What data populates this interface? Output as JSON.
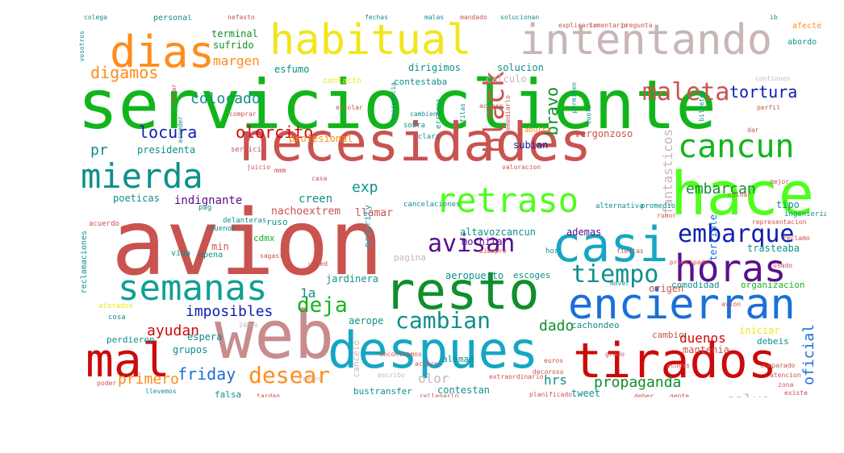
{
  "words": [
    {
      "text": "avion",
      "color": "#c9534f",
      "bucket": "xxl"
    },
    {
      "text": "servicio",
      "color": "#11b51b",
      "bucket": "xl"
    },
    {
      "text": "cliente",
      "color": "#11b51b",
      "bucket": "xl"
    },
    {
      "text": "web",
      "color": "#c98c8c",
      "bucket": "xl"
    },
    {
      "text": "hace",
      "color": "#4dff1a",
      "bucket": "xl"
    },
    {
      "text": "necesidades",
      "color": "#c9534f",
      "bucket": "l"
    },
    {
      "text": "despues",
      "color": "#15a6c4",
      "bucket": "l"
    },
    {
      "text": "resto",
      "color": "#0f8f2a",
      "bucket": "l"
    },
    {
      "text": "casi",
      "color": "#15a6c4",
      "bucket": "l"
    },
    {
      "text": "intentando",
      "color": "#c9b5b5",
      "bucket": "l"
    },
    {
      "text": "habitual",
      "color": "#f0e61a",
      "bucket": "l"
    },
    {
      "text": "dias",
      "color": "#ff8c1a",
      "bucket": "l"
    },
    {
      "text": "tirados",
      "color": "#cc0a0a",
      "bucket": "l"
    },
    {
      "text": "mal",
      "color": "#cc0a0a",
      "bucket": "l"
    },
    {
      "text": "encierran",
      "color": "#1a6fd9",
      "bucket": "l"
    },
    {
      "text": "semanas",
      "color": "#11a095",
      "bucket": "l"
    },
    {
      "text": "horas",
      "color": "#5a0f8c",
      "bucket": "l"
    },
    {
      "text": "mierda",
      "color": "#0f8f8a",
      "bucket": "m"
    },
    {
      "text": "retraso",
      "color": "#4dff1a",
      "bucket": "m"
    },
    {
      "text": "cancun",
      "color": "#11b51b",
      "bucket": "m"
    },
    {
      "text": "embarque",
      "color": "#0f1eb0",
      "bucket": "m"
    },
    {
      "text": "avisan",
      "color": "#5a0f8c",
      "bucket": "m"
    },
    {
      "text": "maleta",
      "color": "#c9534f",
      "bucket": "m"
    },
    {
      "text": "black",
      "color": "#c9534f",
      "bucket": "m"
    },
    {
      "text": "tiempo",
      "color": "#0f8f8a",
      "bucket": "m"
    },
    {
      "text": "cambian",
      "color": "#0f8f8a",
      "bucket": "m"
    },
    {
      "text": "desear",
      "color": "#ff8c1a",
      "bucket": "m"
    },
    {
      "text": "deja",
      "color": "#11b51b",
      "bucket": "m"
    },
    {
      "text": "friday",
      "color": "#1a6fd9",
      "bucket": "s"
    },
    {
      "text": "tortura",
      "color": "#0f1eb0",
      "bucket": "s"
    },
    {
      "text": "bravo",
      "color": "#0f8f2a",
      "bucket": "s"
    },
    {
      "text": "olorcito",
      "color": "#cc0a0a",
      "bucket": "s"
    },
    {
      "text": "locura",
      "color": "#0f1eb0",
      "bucket": "s"
    },
    {
      "text": "digamos",
      "color": "#ff8c1a",
      "bucket": "s"
    },
    {
      "text": "margen",
      "color": "#ff8c1a",
      "bucket": "s"
    },
    {
      "text": "colocado",
      "color": "#0f8f8a",
      "bucket": "s"
    },
    {
      "text": "embarcan",
      "color": "#0f8f2a",
      "bucket": "s"
    },
    {
      "text": "imposibles",
      "color": "#0f1eb0",
      "bucket": "s"
    },
    {
      "text": "ayudan",
      "color": "#cc0a0a",
      "bucket": "s"
    },
    {
      "text": "propaganda",
      "color": "#0f8f2a",
      "bucket": "s"
    },
    {
      "text": "primero",
      "color": "#ff8c1a",
      "bucket": "s"
    },
    {
      "text": "oficial",
      "color": "#1a6fd9",
      "bucket": "s"
    },
    {
      "text": "salvo",
      "color": "#c9b5b5",
      "bucket": "s"
    },
    {
      "text": "dado",
      "color": "#0f8f2a",
      "bucket": "s"
    },
    {
      "text": "pr",
      "color": "#0f8f8a",
      "bucket": "s"
    },
    {
      "text": "exp",
      "color": "#0f8f8a",
      "bucket": "s"
    },
    {
      "text": "fantasticos",
      "color": "#c9b5b5",
      "bucket": "s"
    },
    {
      "text": "1a",
      "color": "#0f8f8a",
      "bucket": "s"
    },
    {
      "text": "duenos",
      "color": "#cc0a0a",
      "bucket": "s"
    },
    {
      "text": "olor",
      "color": "#c9b5b5",
      "bucket": "s"
    },
    {
      "text": "hrs",
      "color": "#0f8f8a",
      "bucket": "s"
    },
    {
      "text": "indignante",
      "color": "#5a0f8c",
      "bucket": "xs"
    },
    {
      "text": "creen",
      "color": "#0f8f8a",
      "bucket": "xs"
    },
    {
      "text": "nachoextrem",
      "color": "#c9534f",
      "bucket": "xs"
    },
    {
      "text": "llamar",
      "color": "#c9534f",
      "bucket": "xs"
    },
    {
      "text": "altavozcancun",
      "color": "#0f8f8a",
      "bucket": "xs"
    },
    {
      "text": "ademas",
      "color": "#5a0f8c",
      "bucket": "xs"
    },
    {
      "text": "terminal",
      "color": "#0f8f2a",
      "bucket": "xs"
    },
    {
      "text": "sufrido",
      "color": "#0f8f2a",
      "bucket": "xs"
    },
    {
      "text": "esfumo",
      "color": "#0f8f8a",
      "bucket": "xs"
    },
    {
      "text": "dirigimos",
      "color": "#0f8f8a",
      "bucket": "xs"
    },
    {
      "text": "contestaba",
      "color": "#0f8f8a",
      "bucket": "xs"
    },
    {
      "text": "solucion",
      "color": "#0f8f8a",
      "bucket": "xs"
    },
    {
      "text": "calculo",
      "color": "#c9b5b5",
      "bucket": "xs"
    },
    {
      "text": "profesional",
      "color": "#ff8c1a",
      "bucket": "xs"
    },
    {
      "text": "presidenta",
      "color": "#0f8f8a",
      "bucket": "xs"
    },
    {
      "text": "poeticas",
      "color": "#0f8f8a",
      "bucket": "xs"
    },
    {
      "text": "subian",
      "color": "#0f1eb0",
      "bucket": "xs"
    },
    {
      "text": "vergonzoso",
      "color": "#c9534f",
      "bucket": "xs"
    },
    {
      "text": "tipo",
      "color": "#0f8f8a",
      "bucket": "xs"
    },
    {
      "text": "terrible",
      "color": "#1a6fd9",
      "bucket": "xs"
    },
    {
      "text": "mochila",
      "color": "#5a0f8c",
      "bucket": "xs"
    },
    {
      "text": "aeropuerto",
      "color": "#0f8f8a",
      "bucket": "xs"
    },
    {
      "text": "escoges",
      "color": "#0f8f8a",
      "bucket": "xs"
    },
    {
      "text": "trasteaba",
      "color": "#0f8f8a",
      "bucket": "xs"
    },
    {
      "text": "origen",
      "color": "#c9534f",
      "bucket": "xs"
    },
    {
      "text": "comodidad",
      "color": "#0f8f8a",
      "bucket": "xs"
    },
    {
      "text": "organizacion",
      "color": "#11b51b",
      "bucket": "xs"
    },
    {
      "text": "jardinera",
      "color": "#0f8f8a",
      "bucket": "xs"
    },
    {
      "text": "aerope",
      "color": "#0f8f8a",
      "bucket": "xs"
    },
    {
      "text": "cachondeo",
      "color": "#0f8f8a",
      "bucket": "xs"
    },
    {
      "text": "cambio",
      "color": "#c9534f",
      "bucket": "xs"
    },
    {
      "text": "mantenia",
      "color": "#c9534f",
      "bucket": "xs"
    },
    {
      "text": "iniciar",
      "color": "#f0e61a",
      "bucket": "xs"
    },
    {
      "text": "debeis",
      "color": "#0f8f8a",
      "bucket": "xs"
    },
    {
      "text": "espera",
      "color": "#0f8f8a",
      "bucket": "xs"
    },
    {
      "text": "grupos",
      "color": "#0f8f8a",
      "bucket": "xs"
    },
    {
      "text": "perdieron",
      "color": "#0f8f8a",
      "bucket": "xs"
    },
    {
      "text": "cancelo",
      "color": "#c9b5b5",
      "bucket": "xs"
    },
    {
      "text": "tweet",
      "color": "#0f8f8a",
      "bucket": "xs"
    },
    {
      "text": "contestan",
      "color": "#0f8f8a",
      "bucket": "xs"
    },
    {
      "text": "bustransfer",
      "color": "#0f8f8a",
      "bucket": "xs"
    },
    {
      "text": "falsa",
      "color": "#0f8f8a",
      "bucket": "xs"
    },
    {
      "text": "min",
      "color": "#c9534f",
      "bucket": "xs"
    },
    {
      "text": "cdmx",
      "color": "#11b51b",
      "bucket": "xs"
    },
    {
      "text": "priority",
      "color": "#15a6c4",
      "bucket": "xs"
    },
    {
      "text": "pagina",
      "color": "#c9b5b5",
      "bucket": "xs"
    },
    {
      "text": "ruso",
      "color": "#0f8f8a",
      "bucket": "xs"
    },
    {
      "text": "aleman",
      "color": "#0f8f8a",
      "bucket": "xs"
    },
    {
      "text": "reclamaciones",
      "color": "#0f8f8a",
      "bucket": "xxs"
    },
    {
      "text": "acuerdo",
      "color": "#c9534f",
      "bucket": "xxs"
    },
    {
      "text": "pag",
      "color": "#0f8f8a",
      "bucket": "xxs"
    },
    {
      "text": "buenos",
      "color": "#0f8f8a",
      "bucket": "xxs"
    },
    {
      "text": "vida",
      "color": "#0f8f8a",
      "bucket": "xxs"
    },
    {
      "text": "apena",
      "color": "#0f8f8a",
      "bucket": "xxs"
    },
    {
      "text": "cosa",
      "color": "#0f8f8a",
      "bucket": "xxs"
    },
    {
      "text": "atorados",
      "color": "#f0e61a",
      "bucket": "xxs"
    },
    {
      "text": "personal",
      "color": "#0f8f8a",
      "bucket": "xxs"
    },
    {
      "text": "delanteras",
      "color": "#0f8f8a",
      "bucket": "xxs"
    },
    {
      "text": "contacto",
      "color": "#f0e61a",
      "bucket": "xxs"
    },
    {
      "text": "afecte",
      "color": "#ff8c1a",
      "bucket": "xxs"
    },
    {
      "text": "abordo",
      "color": "#0f8f8a",
      "bucket": "xxs"
    },
    {
      "text": "ingenieria",
      "color": "#0f8f8a",
      "bucket": "xxs"
    },
    {
      "text": "hor",
      "color": "#0f8f8a",
      "bucket": "xxs"
    },
    {
      "text": "cancelaciones",
      "color": "#0f8f8a",
      "bucket": "xxs"
    },
    {
      "text": "alternativa",
      "color": "#0f8f8a",
      "bucket": "xxs"
    },
    {
      "text": "promedio",
      "color": "#0f8f8a",
      "bucket": "xxs"
    },
    {
      "text": "sobra",
      "color": "#0f8f8a",
      "bucket": "xxs"
    },
    {
      "text": "errores",
      "color": "#0f8f8a",
      "bucket": "xxs"
    },
    {
      "text": "abulta",
      "color": "#ff8c1a",
      "bucket": "xxs"
    },
    {
      "text": "servicio",
      "color": "#c9534f",
      "bucket": "xxs"
    },
    {
      "text": "clara",
      "color": "#0f8f8a",
      "bucket": "xxs"
    },
    {
      "text": "escribo",
      "color": "#c9b5b5",
      "bucket": "xxs"
    },
    {
      "text": "decoroso",
      "color": "#c9534f",
      "bucket": "xxs"
    },
    {
      "text": "llevemos",
      "color": "#0f8f8a",
      "bucket": "xxs"
    },
    {
      "text": "tardan",
      "color": "#c9534f",
      "bucket": "xxs"
    },
    {
      "text": "representacion",
      "color": "#c9534f",
      "bucket": "xxs"
    },
    {
      "text": "reclamo",
      "color": "#c9534f",
      "bucket": "xxs"
    },
    {
      "text": "rumor",
      "color": "#c9534f",
      "bucket": "xxs"
    },
    {
      "text": "juicio",
      "color": "#c9534f",
      "bucket": "xxs"
    },
    {
      "text": "llevar",
      "color": "#c9534f",
      "bucket": "xxs"
    },
    {
      "text": "acceder",
      "color": "#0f8f8a",
      "bucket": "xxs"
    },
    {
      "text": "permiten",
      "color": "#0f8f8a",
      "bucket": "xxs"
    },
    {
      "text": "coofi",
      "color": "#0f8f8a",
      "bucket": "xxs"
    },
    {
      "text": "colega",
      "color": "#0f8f8a",
      "bucket": "xxs"
    },
    {
      "text": "nefasto",
      "color": "#c9534f",
      "bucket": "xxs"
    },
    {
      "text": "fechas",
      "color": "#0f8f8a",
      "bucket": "xxs"
    },
    {
      "text": "malas",
      "color": "#0f8f8a",
      "bucket": "xxs"
    },
    {
      "text": "mandado",
      "color": "#c9534f",
      "bucket": "xxs"
    },
    {
      "text": "solucionan",
      "color": "#0f8f8a",
      "bucket": "xxs"
    },
    {
      "text": "vosotros",
      "color": "#0f8f8a",
      "bucket": "xxs"
    },
    {
      "text": "billetes",
      "color": "#0f8f8a",
      "bucket": "xxs"
    },
    {
      "text": "acabar",
      "color": "#c9534f",
      "bucket": "xxs"
    },
    {
      "text": "cambien",
      "color": "#0f8f8a",
      "bucket": "xxs"
    },
    {
      "text": "emergencia",
      "color": "#0f8f8a",
      "bucket": "xxs"
    },
    {
      "text": "siempre",
      "color": "#c9534f",
      "bucket": "xxs"
    },
    {
      "text": "principado",
      "color": "#c9534f",
      "bucket": "xxs"
    },
    {
      "text": "atencion",
      "color": "#c9534f",
      "bucket": "xxs"
    },
    {
      "text": "24hrs",
      "color": "#c9b5b5",
      "bucket": "xxs"
    },
    {
      "text": "encontremos",
      "color": "#c9534f",
      "bucket": "xxs"
    },
    {
      "text": "aclare",
      "color": "#c9534f",
      "bucket": "xxs"
    },
    {
      "text": "euros",
      "color": "#c9534f",
      "bucket": "xxs"
    },
    {
      "text": "grado",
      "color": "#c9534f",
      "bucket": "xxs"
    },
    {
      "text": "acudas",
      "color": "#c9534f",
      "bucket": "xxs"
    },
    {
      "text": "filas",
      "color": "#0f8f8a",
      "bucket": "xxs"
    },
    {
      "text": "remediarlo",
      "color": "#c9534f",
      "bucket": "xxs"
    },
    {
      "text": "comprar",
      "color": "#c9534f",
      "bucket": "xxs"
    },
    {
      "text": "vuelos",
      "color": "#c9b5b5",
      "bucket": "xxs"
    },
    {
      "text": "poder",
      "color": "#c9534f",
      "bucket": "xxs"
    },
    {
      "text": "fiestas",
      "color": "#c9534f",
      "bucket": "xxs"
    },
    {
      "text": "cuidar",
      "color": "#c9534f",
      "bucket": "xxs"
    },
    {
      "text": "perfil",
      "color": "#c9534f",
      "bucket": "xxs"
    },
    {
      "text": "mejor",
      "color": "#c9534f",
      "bucket": "xxs"
    },
    {
      "text": "ib",
      "color": "#0f8f8a",
      "bucket": "xxs"
    },
    {
      "text": "escolar",
      "color": "#c9534f",
      "bucket": "xxs"
    },
    {
      "text": "explicarlo",
      "color": "#c9534f",
      "bucket": "xxs"
    },
    {
      "text": "pregunta",
      "color": "#c9534f",
      "bucket": "xxs"
    },
    {
      "text": "comentario",
      "color": "#c9534f",
      "bucket": "xxs"
    },
    {
      "text": "continuos",
      "color": "#c9b5b5",
      "bucket": "xxs"
    },
    {
      "text": "casa",
      "color": "#c9534f",
      "bucket": "xxs"
    },
    {
      "text": "dar",
      "color": "#c9534f",
      "bucket": "xxs"
    },
    {
      "text": "mover",
      "color": "#0f8f8a",
      "bucket": "xxs"
    },
    {
      "text": "usado",
      "color": "#c9534f",
      "bucket": "xxs"
    },
    {
      "text": "comparado",
      "color": "#c9534f",
      "bucket": "xxs"
    },
    {
      "text": "zona",
      "color": "#c9534f",
      "bucket": "xxs"
    },
    {
      "text": "existe",
      "color": "#c9534f",
      "bucket": "xxs"
    },
    {
      "text": "rellenarlo",
      "color": "#c9534f",
      "bucket": "xxs"
    },
    {
      "text": "extraordinario",
      "color": "#c9534f",
      "bucket": "xxs"
    },
    {
      "text": "deber",
      "color": "#c9534f",
      "bucket": "xxs"
    },
    {
      "text": "gente",
      "color": "#c9534f",
      "bucket": "xxs"
    },
    {
      "text": "plantilla",
      "color": "#c9534f",
      "bucket": "xxs"
    },
    {
      "text": "planificado",
      "color": "#c9534f",
      "bucket": "xxs"
    },
    {
      "text": "dan",
      "color": "#c9534f",
      "bucket": "xxs"
    },
    {
      "text": "usted",
      "color": "#c9534f",
      "bucket": "xxs"
    },
    {
      "text": "sagasta",
      "color": "#c9534f",
      "bucket": "xxs"
    },
    {
      "text": "mmm",
      "color": "#c9534f",
      "bucket": "xxs"
    },
    {
      "text": "valoracion",
      "color": "#c9534f",
      "bucket": "xxs"
    },
    {
      "text": "avion",
      "color": "#c9534f",
      "bucket": "xxs"
    }
  ]
}
